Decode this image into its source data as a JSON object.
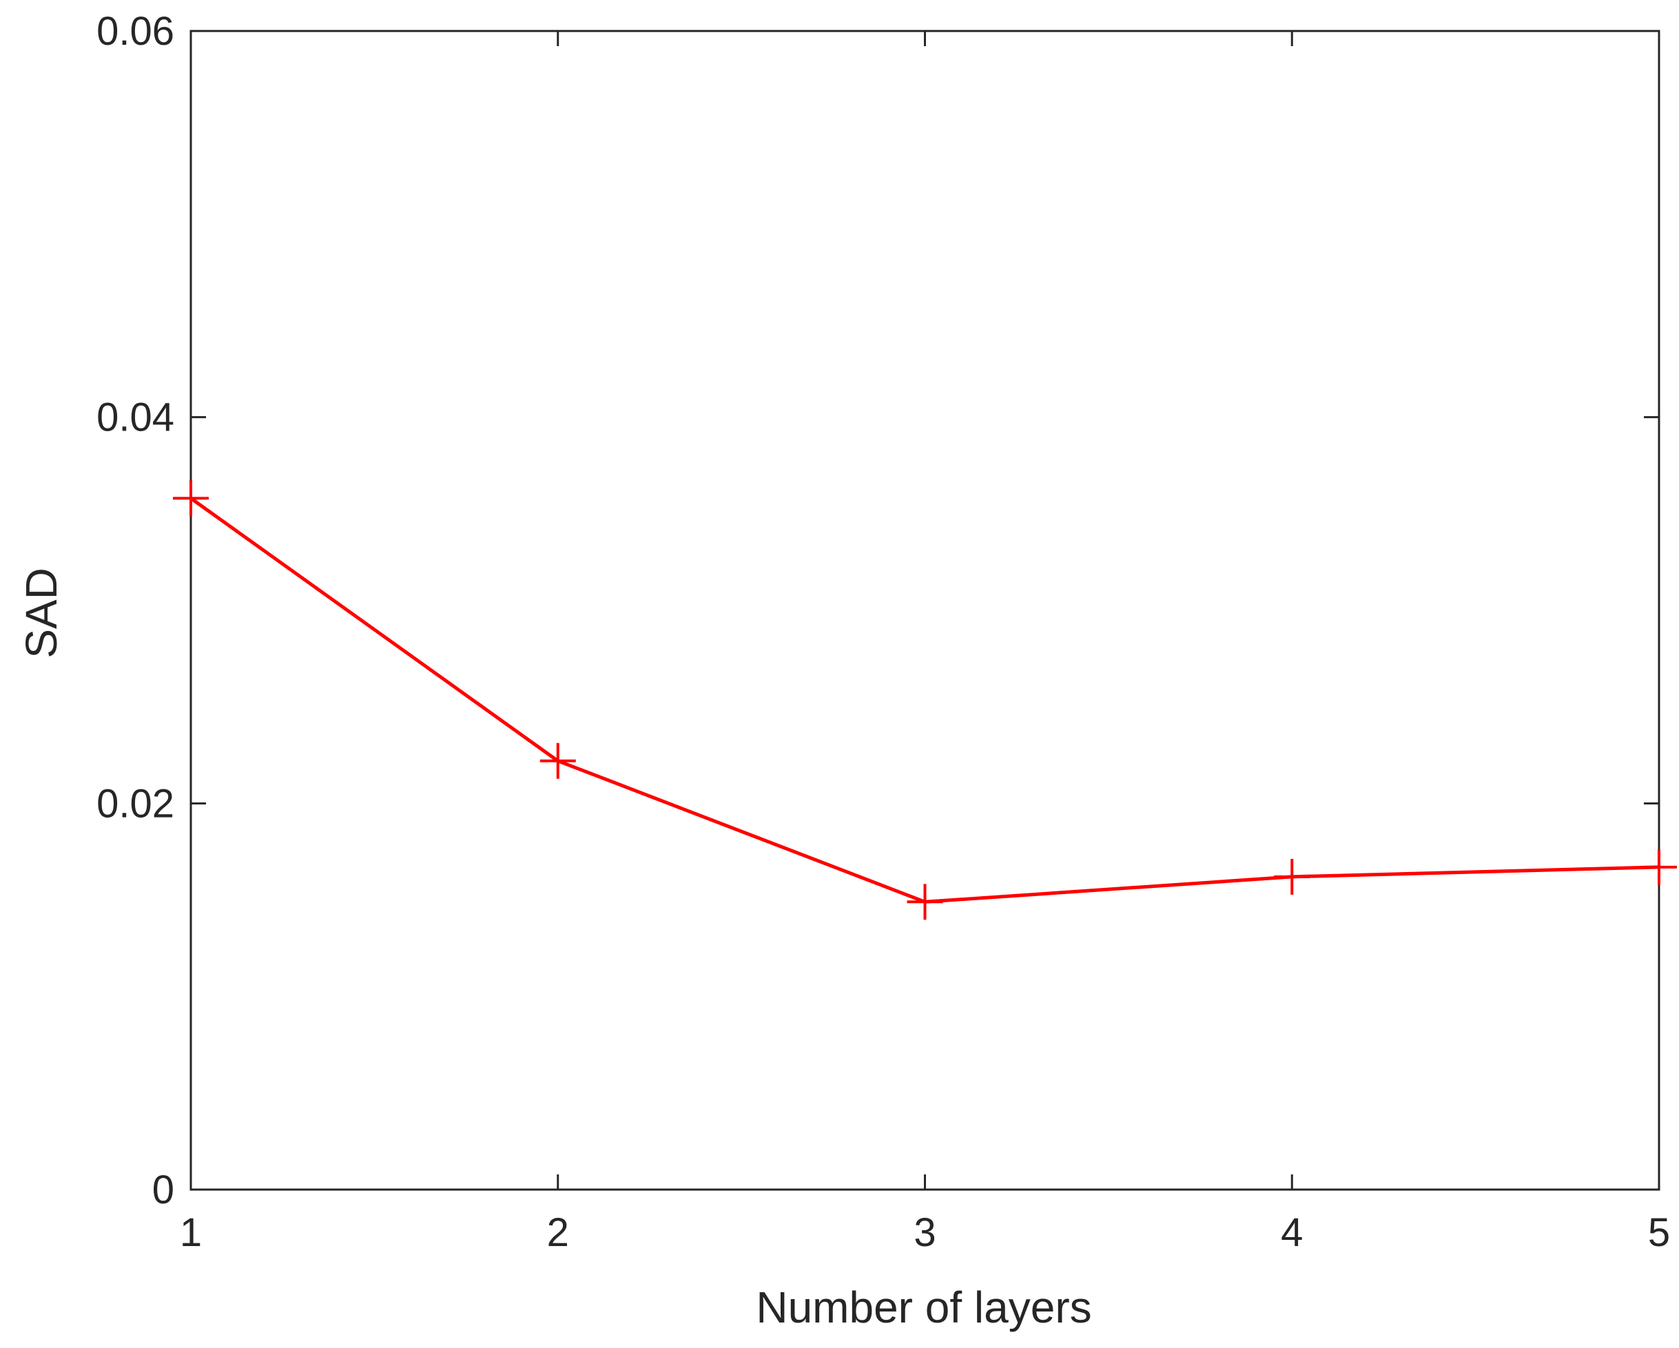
{
  "chart_data": {
    "type": "line",
    "title": "",
    "xlabel": "Number of layers",
    "ylabel": "SAD",
    "xlim": [
      1,
      5
    ],
    "ylim": [
      0,
      0.06
    ],
    "x_ticks": [
      1,
      2,
      3,
      4,
      5
    ],
    "x_tick_labels": [
      "1",
      "2",
      "3",
      "4",
      "5"
    ],
    "y_ticks": [
      0,
      0.02,
      0.04,
      0.06
    ],
    "y_tick_labels": [
      "0",
      "0.02",
      "0.04",
      "0.06"
    ],
    "grid": false,
    "legend": "none",
    "series": [
      {
        "color": "#ff0000",
        "marker": "plus",
        "x": [
          1,
          2,
          3,
          4,
          5
        ],
        "values": [
          0.0358,
          0.0222,
          0.0149,
          0.0162,
          0.0167
        ]
      }
    ]
  },
  "colors": {
    "axis": "#262626",
    "series": "#ff0000",
    "background": "#ffffff"
  }
}
